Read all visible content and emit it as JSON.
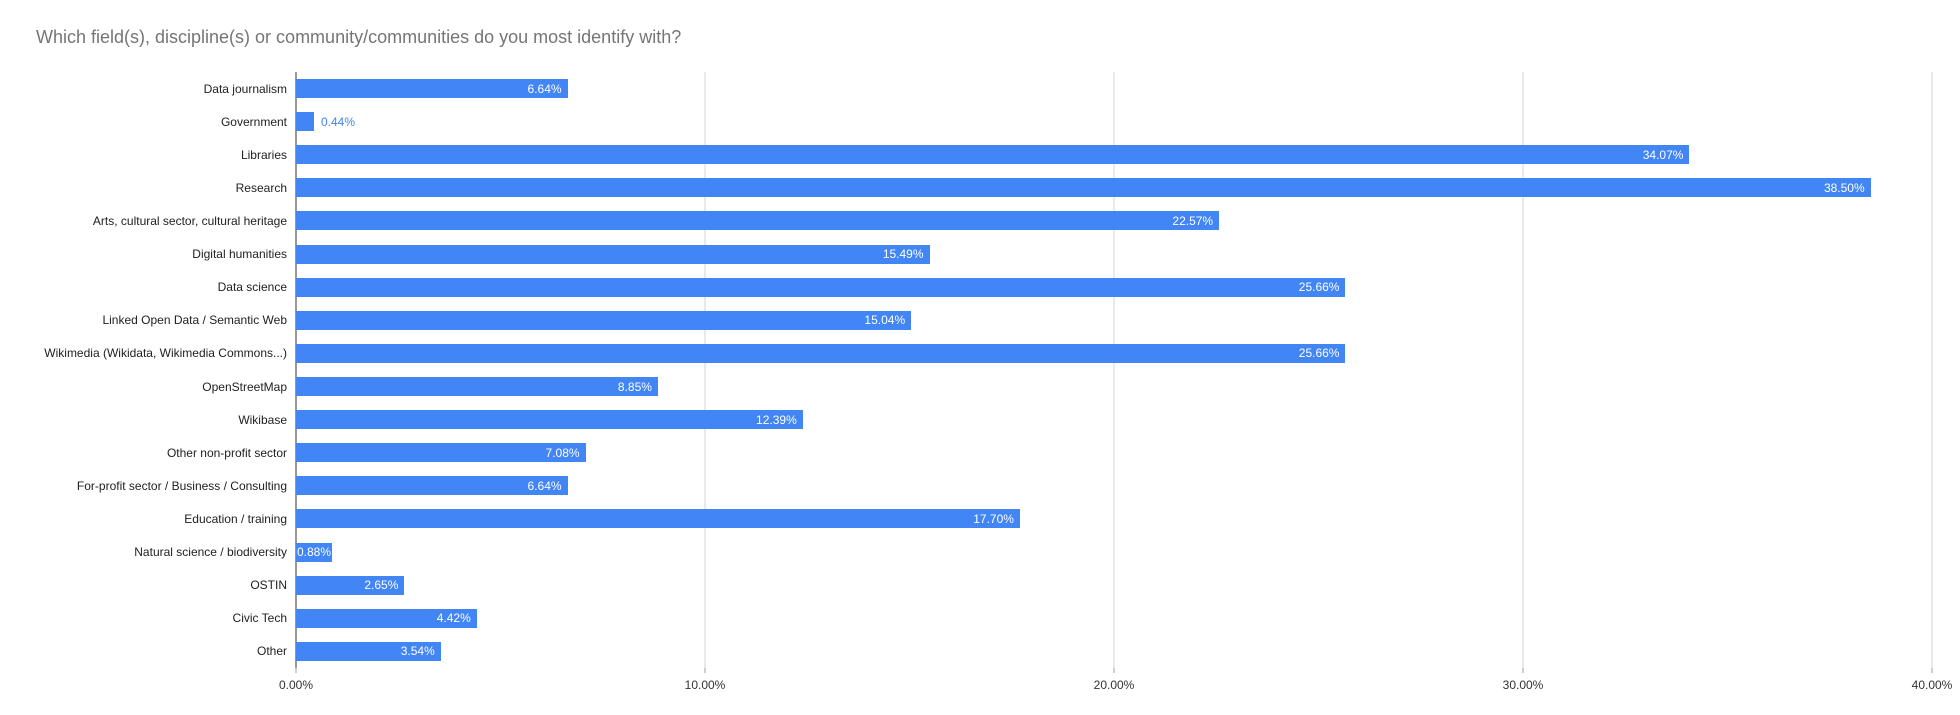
{
  "title": "Which field(s), discipline(s) or community/communities do you most identify with?",
  "colors": {
    "bar": "#4285f4",
    "value_label_inside": "#ffffff",
    "value_label_outside": "#4285f4",
    "title": "#757575",
    "category_label": "#212121",
    "tick_label": "#333333",
    "gridline": "#d6d6d6",
    "axis_line": "#333333"
  },
  "chart_data": {
    "type": "bar",
    "orientation": "horizontal",
    "title": "Which field(s), discipline(s) or community/communities do you most identify with?",
    "categories": [
      "Data journalism",
      "Government",
      "Libraries",
      "Research",
      "Arts, cultural sector, cultural heritage",
      "Digital humanities",
      "Data science",
      "Linked Open Data / Semantic Web",
      "Wikimedia (Wikidata, Wikimedia Commons...)",
      "OpenStreetMap",
      "Wikibase",
      "Other non-profit sector",
      "For-profit sector / Business / Consulting",
      "Education / training",
      "Natural science / biodiversity",
      "OSTIN",
      "Civic Tech",
      "Other"
    ],
    "values": [
      6.64,
      0.44,
      34.07,
      38.5,
      22.57,
      15.49,
      25.66,
      15.04,
      25.66,
      8.85,
      12.39,
      7.08,
      6.64,
      17.7,
      0.88,
      2.65,
      4.42,
      3.54
    ],
    "value_labels": [
      "6.64%",
      "0.44%",
      "34.07%",
      "38.50%",
      "22.57%",
      "15.49%",
      "25.66%",
      "15.04%",
      "25.66%",
      "8.85%",
      "12.39%",
      "7.08%",
      "6.64%",
      "17.70%",
      "0.88%",
      "2.65%",
      "4.42%",
      "3.54%"
    ],
    "xlabel": "",
    "ylabel": "",
    "xlim": [
      0,
      40
    ],
    "x_tick_labels": [
      "0.00%",
      "10.00%",
      "20.00%",
      "30.00%",
      "40.00%"
    ],
    "grid": "vertical gridlines on",
    "legend": "none"
  }
}
